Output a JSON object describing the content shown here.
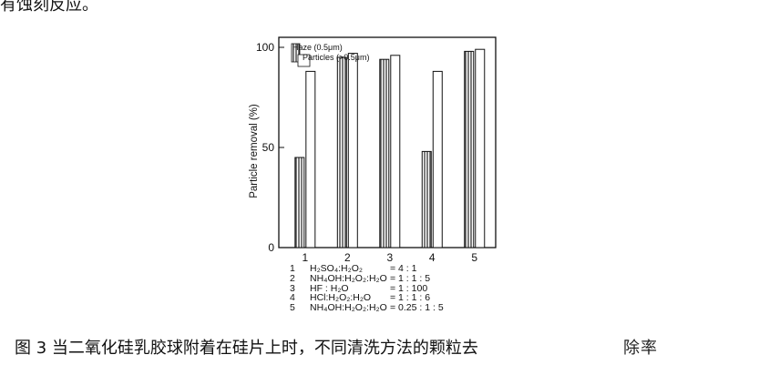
{
  "document": {
    "top_text": "有蚀刻反应。",
    "caption": "图 3  当二氧化硅乳胶球附着在硅片上时，不同清洗方法的颗粒去",
    "watermark_text": "除率"
  },
  "chart_data": {
    "type": "bar",
    "title": "",
    "xlabel": "",
    "ylabel": "Particle removal (%)",
    "ylim": [
      0,
      105
    ],
    "yticks": [
      0,
      50,
      100
    ],
    "categories": [
      "1",
      "2",
      "3",
      "4",
      "5"
    ],
    "series": [
      {
        "name": "Haze (0.5μm)",
        "values": [
          45,
          95,
          94,
          48,
          98
        ],
        "pattern": "hatched"
      },
      {
        "name": "Particles (>0.5μm)",
        "values": [
          88,
          97,
          96,
          88,
          99
        ],
        "pattern": "open"
      }
    ],
    "legend_position": "top-left",
    "conditions": [
      {
        "num": "1",
        "reagent": "H₂SO₄:H₂O₂",
        "ratio": "= 4 : 1"
      },
      {
        "num": "2",
        "reagent": "NH₄OH:H₂O₂:H₂O",
        "ratio": "= 1 : 1 : 5"
      },
      {
        "num": "3",
        "reagent": "HF : H₂O",
        "ratio": "= 1 : 100"
      },
      {
        "num": "4",
        "reagent": "HCl:H₂O₂:H₂O",
        "ratio": "= 1 : 1 : 6"
      },
      {
        "num": "5",
        "reagent": "NH₄OH:H₂O₂:H₂O",
        "ratio": "= 0.25 : 1 : 5"
      }
    ]
  }
}
